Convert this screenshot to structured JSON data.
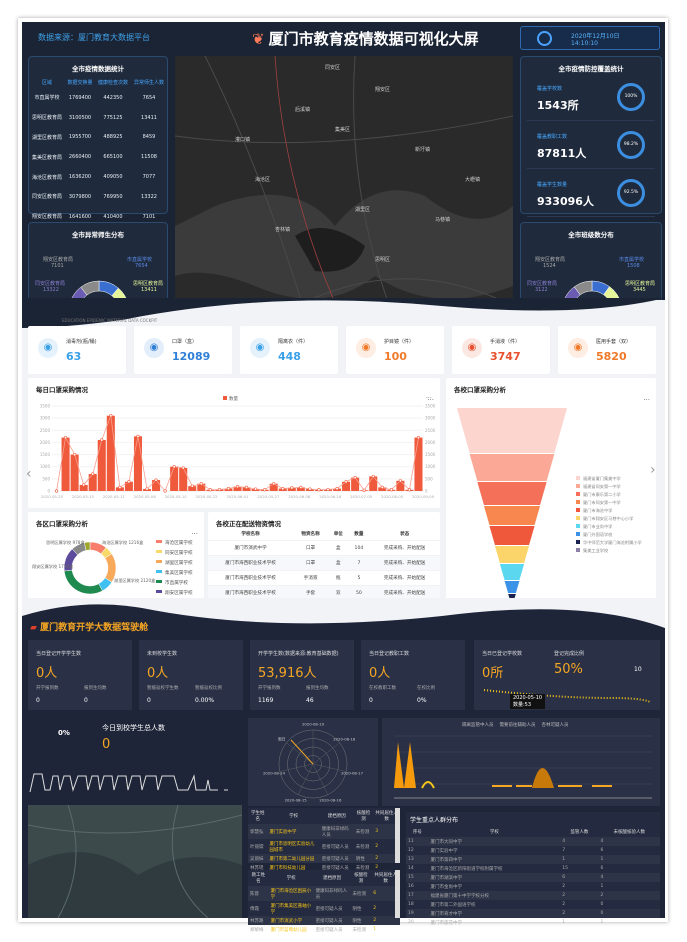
{
  "header": {
    "source": "数据来源：厦门教育大数据平台",
    "title": "厦门市教育疫情数据可视化大屏",
    "date": "2020年12月10日",
    "time": "14:10:10"
  },
  "epidemic_stats": {
    "title": "全市疫情数据统计",
    "columns": [
      "区域",
      "数据交换量",
      "健康检查次数",
      "异常师生人数"
    ],
    "rows": [
      [
        "市直属学校",
        "1769400",
        "442350",
        "7654"
      ],
      [
        "思明区教育局",
        "3100500",
        "775125",
        "13411"
      ],
      [
        "湖里区教育局",
        "1955700",
        "488925",
        "8459"
      ],
      [
        "集美区教育局",
        "2660400",
        "665100",
        "11508"
      ],
      [
        "海沧区教育局",
        "1636200",
        "409050",
        "7077"
      ],
      [
        "同安区教育局",
        "3079800",
        "769950",
        "13322"
      ],
      [
        "翔安区教育局",
        "1641600",
        "410400",
        "7101"
      ]
    ]
  },
  "coverage": {
    "title": "全市疫情防控覆盖统计",
    "items": [
      {
        "label": "覆盖学校数",
        "value": "1543所",
        "pct": "100%"
      },
      {
        "label": "覆盖教职工数",
        "value": "87811人",
        "pct": "98.2%"
      },
      {
        "label": "覆盖学生数量",
        "value": "933096人",
        "pct": "92.5%"
      }
    ]
  },
  "abnormal_dist": {
    "title": "全市异常师生分布",
    "labels": [
      {
        "name": "翔安区教育局",
        "value": "7101"
      },
      {
        "name": "市直属学校",
        "value": "7654"
      },
      {
        "name": "同安区教育局",
        "value": "13322"
      },
      {
        "name": "思明区教育局",
        "value": "13411"
      }
    ]
  },
  "class_dist": {
    "title": "全市班级数分布",
    "labels": [
      {
        "name": "翔安区教育局",
        "value": "1524"
      },
      {
        "name": "市直属学校",
        "value": "1508"
      },
      {
        "name": "同安区教育局",
        "value": "3122"
      },
      {
        "name": "思明区教育局",
        "value": "3445"
      }
    ]
  },
  "map": {
    "places": [
      "同安区",
      "翔安区",
      "集美区",
      "海沧区",
      "湖里区",
      "思明区",
      "灌口镇",
      "后溪镇",
      "新圩镇",
      "马巷镇",
      "杏林镇",
      "大嶝镇"
    ]
  },
  "material_caption": "EDUCATION EPIDEMIC MATERIAL DATA COCKPIT",
  "materials": [
    {
      "label": "消毒剂(瓶/桶)",
      "value": "63",
      "icon": "bottle-icon",
      "color": "#3aa0e8"
    },
    {
      "label": "口罩（盒）",
      "value": "12089",
      "icon": "mask-icon",
      "color": "#2f7fd6"
    },
    {
      "label": "隔离衣（件）",
      "value": "448",
      "icon": "gown-icon",
      "color": "#3aa0e8"
    },
    {
      "label": "护目镜（件）",
      "value": "100",
      "icon": "goggles-icon",
      "color": "#f07a2a"
    },
    {
      "label": "手消液（件）",
      "value": "3747",
      "icon": "sanitizer-icon",
      "color": "#e8502e"
    },
    {
      "label": "医用手套（双）",
      "value": "5820",
      "icon": "glove-icon",
      "color": "#f07a2a"
    }
  ],
  "daily_chart": {
    "title": "每日口罩采购情况",
    "more": "···"
  },
  "funnel_chart": {
    "title": "各校口罩采购分析",
    "more": "···"
  },
  "district_chart": {
    "title": "各区口罩采购分析",
    "more": "···"
  },
  "delivery": {
    "title": "各校正在配送物资情况",
    "columns": [
      "学校名称",
      "物资名称",
      "单位",
      "数量",
      "状态"
    ],
    "rows": [
      [
        "厦门市演武中学",
        "口罩",
        "盒",
        "104",
        "完成采购、开始配送"
      ],
      [
        "厦门市海西职业技术学校",
        "口罩",
        "盒",
        "7",
        "完成采购、开始配送"
      ],
      [
        "厦门市海西职业技术学校",
        "手消液",
        "瓶",
        "5",
        "完成采购、开始配送"
      ],
      [
        "厦门市海西职业技术学校",
        "手套",
        "双",
        "50",
        "完成采购、开始配送"
      ],
      [
        "厦门市海西职业技术学校",
        "隔离衣",
        "件",
        "2",
        "完成采购、开始配送"
      ]
    ]
  },
  "cockpit": {
    "title": "厦门教育开学大数据驾驶舱",
    "cards": [
      {
        "label": "当日登记开学学生数",
        "value": "0人",
        "subs": [
          [
            "开学报到数",
            "0"
          ],
          [
            "报到生均数",
            "0"
          ]
        ]
      },
      {
        "label": "未到校学生数",
        "value": "0人",
        "subs": [
          [
            "暂缓返校学生数",
            "0"
          ],
          [
            "暂缓返校比例",
            "0.00%"
          ]
        ]
      },
      {
        "label": "开学学生数(数据来源:教育基础数据)",
        "value": "53,916人",
        "subs": [
          [
            "开学报到数",
            "1169"
          ],
          [
            "报到生均数",
            "46"
          ]
        ]
      },
      {
        "label": "当日登记教职工数",
        "value": "0人",
        "subs": [
          [
            "在校教职工数",
            "0"
          ],
          [
            "在校比例",
            "0%"
          ]
        ]
      }
    ],
    "school_card": {
      "label1": "当日已登记学校数",
      "value1": "0所",
      "label2": "登记完成比例",
      "value2": "50%",
      "side": "10",
      "tooltip_date": "2020-05-10",
      "tooltip_val": "数量:53"
    },
    "today": {
      "pct": "0%",
      "label": "今日到校学生总人数",
      "value": "0"
    },
    "radar_labels": [
      "2020-08-19",
      "2020-08-18",
      "2020-08-17",
      "2020-08-16",
      "2020-08-15",
      "2020-08-14",
      "周日"
    ],
    "line_legend": [
      "隔离监管中人员",
      "需要前往辅助人员",
      "杏林可疑人员"
    ],
    "students_table": {
      "columns": [
        "学生姓名",
        "学校",
        "建档原因",
        "核酸检测",
        "共同居住人数"
      ],
      "rows": [
        [
          "郭慧弘",
          "厦门实验中学",
          "健康码非绿码人员",
          "未检测",
          "3"
        ],
        [
          "叶丽嫦",
          "厦门市思明区实验幼儿园城市",
          "密接可疑人员",
          "未检测",
          "2"
        ],
        [
          "吴丽妹",
          "厦门市第二幼儿园分园",
          "密接可疑人员",
          "阴性",
          "2"
        ],
        [
          "林苏瑶",
          "厦门市科技幼儿园",
          "密接可疑人员",
          "未检测",
          "2"
        ]
      ]
    },
    "staff_table": {
      "columns": [
        "教工姓名",
        "学校",
        "建档原因",
        "核酸检测",
        "共同居住人数"
      ],
      "rows": [
        [
          "陈蓉",
          "厦门市海沧区困辰小学",
          "健康码非绿码人员",
          "未检测",
          "6"
        ],
        [
          "傅霞",
          "厦门市集美区嘉岫小学",
          "密接可疑人员",
          "阴性",
          "2"
        ],
        [
          "林苏路",
          "厦门市演武小学",
          "密接可疑人员",
          "阴性",
          "2"
        ],
        [
          "郑黎梅",
          "厦门市蓝莓幼儿园",
          "密接可疑人员",
          "未检测",
          "1"
        ]
      ]
    },
    "key_table": {
      "title": "学生重点人群分布",
      "columns": [
        "序号",
        "学校",
        "监管人数",
        "未核酸核验人数"
      ],
      "rows": [
        [
          "11",
          "厦门市大同中学",
          "4",
          "4"
        ],
        [
          "12",
          "厦门实验中学",
          "7",
          "6"
        ],
        [
          "13",
          "厦门市第四中学",
          "1",
          "1"
        ],
        [
          "14",
          "厦门市海沧区新阳街道学校附属学校",
          "15",
          "6"
        ],
        [
          "15",
          "厦门市湖滨中学",
          "6",
          "4"
        ],
        [
          "16",
          "厦门市金尚中学",
          "2",
          "1"
        ],
        [
          "17",
          "福建省厦门第十中学学校分校",
          "2",
          "2"
        ],
        [
          "18",
          "厦门市第二外国语学校",
          "2",
          "0"
        ],
        [
          "19",
          "厦门市育才中学",
          "2",
          "0"
        ],
        [
          "20",
          "厦门市莲花中学",
          "1",
          "1"
        ]
      ]
    }
  },
  "chart_data": [
    {
      "type": "bar",
      "title": "每日口罩采购情况",
      "legend": [
        "数量"
      ],
      "ylim": [
        0,
        3500
      ],
      "yticks": [
        0,
        500,
        1000,
        1500,
        2000,
        2500,
        3000,
        3500
      ],
      "xticks": [
        "2020-05-20",
        "2020-05-15",
        "2020-05-11",
        "2020-05-06",
        "2020-05-10",
        "2020-05-22",
        "2020-06-01",
        "2020-05-27",
        "2020-06-08",
        "2020-06-16",
        "2020-07-05",
        "2020-08-05",
        "2020-09-09"
      ],
      "values": [
        0,
        2200,
        1500,
        250,
        700,
        2100,
        3100,
        150,
        380,
        2250,
        80,
        450,
        0,
        1000,
        950,
        200,
        300,
        50,
        60,
        100,
        180,
        150,
        80,
        50,
        300,
        100,
        130,
        150,
        80,
        50,
        60,
        100,
        380,
        550,
        30,
        600,
        150,
        50,
        420,
        50,
        2200
      ]
    },
    {
      "type": "funnel",
      "title": "各校口罩采购分析",
      "categories": [
        "福建省厦门集美中学",
        "福建省同安第一中学",
        "厦门市康乐第二小学",
        "厦门市同安第一中学",
        "厦门市海沧中学",
        "厦门市翔安区马巷中心小学",
        "厦门市业尚中学",
        "厦门外国语学校",
        "华中师范大学厦门海沧附属小学",
        "集美工业学校"
      ],
      "colors": [
        "#fdd5cf",
        "#fba896",
        "#f57058",
        "#f7874e",
        "#f0583c",
        "#fbd56a",
        "#5bd8f0",
        "#3c92e6",
        "#1a2350",
        "#8b7fa8"
      ],
      "values": [
        100,
        60,
        52,
        45,
        40,
        28,
        22,
        15,
        8,
        3
      ]
    },
    {
      "type": "pie",
      "title": "各区口罩采购分析",
      "categories": [
        "海沧区属学校",
        "同安区属学校",
        "湖里区属学校",
        "集美区属学校",
        "市直属学校",
        "翔安区属学校",
        "思明区属学校",
        "其他"
      ],
      "values": [
        1216,
        600,
        2120,
        900,
        3580,
        1710,
        978,
        400
      ],
      "colors": [
        "#f77e6a",
        "#f8d96a",
        "#f8a95a",
        "#40c0f0",
        "#1f8a50",
        "#5c4b9c",
        "#888888",
        "#9ba62a"
      ],
      "labels_shown": [
        "海沧区属学校 1216盒",
        "湖里区属学校 2120盒",
        "市直属学校 3580盒",
        "翔安区属学校 1710盒",
        "思明区属学校 978盒"
      ]
    },
    {
      "type": "pie",
      "title": "全市异常师生分布",
      "values": [
        7654,
        13411,
        8459,
        11508,
        7077,
        13322,
        7101
      ],
      "colors": [
        "#3a6fd1",
        "#e6f59a",
        "#35b8f0",
        "#1d8a7c",
        "#d63a3a",
        "#6a5cb3",
        "#8a8a8a"
      ]
    },
    {
      "type": "pie",
      "title": "全市班级数分布",
      "values": [
        1508,
        3445,
        1800,
        2300,
        1500,
        3122,
        1524
      ],
      "colors": [
        "#3a6fd1",
        "#e6f59a",
        "#35b8f0",
        "#1d8a7c",
        "#d63a3a",
        "#6a5cb3",
        "#8a8a8a"
      ]
    }
  ]
}
